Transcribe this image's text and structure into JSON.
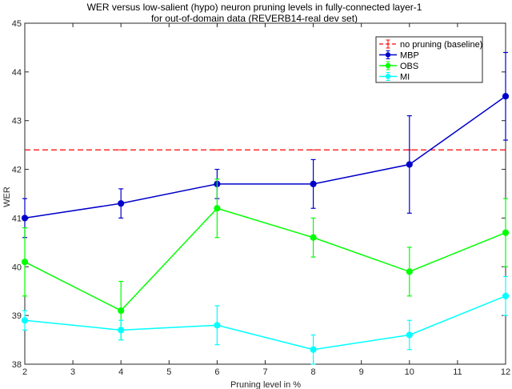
{
  "chart_data": {
    "type": "line",
    "title": "WER  versus  low-salient  (hypo)  neuron  pruning  levels  in  fully-connected  layer-1",
    "subtitle": "for out-of-domain data (REVERB14-real dev set)",
    "xlabel": "Pruning level in %",
    "ylabel": "WER",
    "xlim": [
      2,
      12
    ],
    "ylim": [
      38,
      45
    ],
    "xticks": [
      "2",
      "3",
      "4",
      "5",
      "6",
      "7",
      "8",
      "9",
      "10",
      "11",
      "12"
    ],
    "yticks": [
      "38",
      "39",
      "40",
      "41",
      "42",
      "43",
      "44",
      "45"
    ],
    "grid": false,
    "legend_position": "top-right",
    "series": [
      {
        "name": "no pruning (baseline)",
        "color": "#ff0000",
        "style": "dashed",
        "x": [
          2,
          12
        ],
        "values": [
          42.4,
          42.4
        ]
      },
      {
        "name": "MBP",
        "color": "#0000cc",
        "style": "solid",
        "x": [
          2,
          4,
          6,
          8,
          10,
          12
        ],
        "values": [
          41.0,
          41.3,
          41.7,
          41.7,
          42.1,
          43.5
        ],
        "err": [
          0.4,
          0.3,
          0.3,
          0.5,
          1.0,
          0.9
        ]
      },
      {
        "name": "OBS",
        "color": "#00ff00",
        "style": "solid",
        "x": [
          2,
          4,
          6,
          8,
          10,
          12
        ],
        "values": [
          40.1,
          39.1,
          41.2,
          40.6,
          39.9,
          40.7
        ],
        "err": [
          0.7,
          0.6,
          0.6,
          0.4,
          0.5,
          0.7
        ]
      },
      {
        "name": "MI",
        "color": "#00ffff",
        "style": "solid",
        "x": [
          2,
          4,
          6,
          8,
          10,
          12
        ],
        "values": [
          38.9,
          38.7,
          38.8,
          38.3,
          38.6,
          39.4
        ],
        "err": [
          0.2,
          0.2,
          0.4,
          0.3,
          0.3,
          0.4
        ]
      }
    ]
  }
}
